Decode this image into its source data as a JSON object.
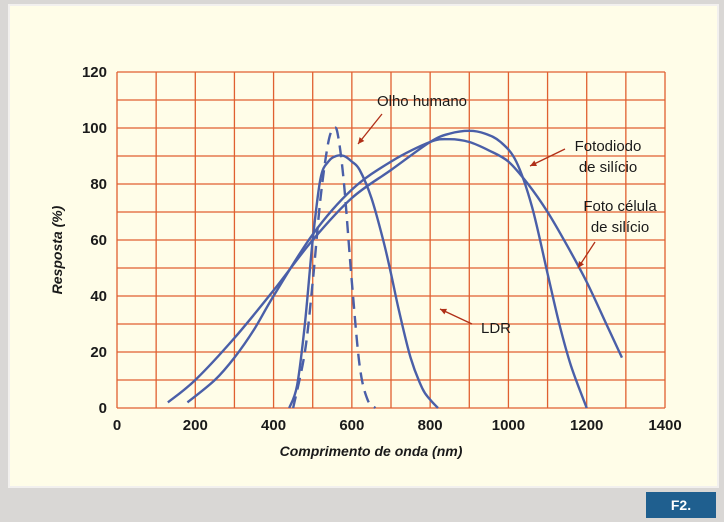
{
  "badge": "F2.",
  "chart_data": {
    "type": "line",
    "title": "",
    "xlabel": "Comprimento de onda (nm)",
    "ylabel": "Resposta (%)",
    "xlim": [
      0,
      1400
    ],
    "ylim": [
      0,
      120
    ],
    "xticks": [
      0,
      200,
      400,
      600,
      800,
      1000,
      1200,
      1400
    ],
    "yticks": [
      0,
      20,
      40,
      60,
      80,
      100,
      120
    ],
    "grid": true,
    "colors": {
      "grid": "#e06030",
      "series": "#4a5fa8",
      "panel": "#fffde8"
    },
    "series": [
      {
        "name": "Olho humano",
        "dash": true,
        "x": [
          450,
          480,
          500,
          520,
          540,
          555,
          565,
          580,
          600,
          620,
          640,
          660
        ],
        "y": [
          0,
          20,
          45,
          75,
          95,
          100,
          97,
          80,
          45,
          15,
          3,
          0
        ]
      },
      {
        "name": "LDR",
        "dash": false,
        "x": [
          440,
          460,
          480,
          500,
          520,
          540,
          560,
          580,
          600,
          620,
          650,
          680,
          700,
          720,
          750,
          780,
          800,
          820
        ],
        "y": [
          0,
          8,
          30,
          60,
          82,
          88,
          90,
          90,
          88,
          85,
          75,
          60,
          48,
          35,
          18,
          7,
          3,
          0
        ]
      },
      {
        "name": "Fotodiodo de silício",
        "dash": false,
        "x": [
          130,
          200,
          300,
          400,
          500,
          600,
          700,
          800,
          850,
          900,
          940,
          980,
          1020,
          1060,
          1100,
          1130,
          1160,
          1200
        ],
        "y": [
          2,
          10,
          25,
          42,
          60,
          75,
          85,
          95,
          98,
          99,
          98,
          95,
          88,
          72,
          48,
          30,
          15,
          0
        ]
      },
      {
        "name": "Foto célula de silício",
        "dash": false,
        "x": [
          180,
          250,
          300,
          350,
          400,
          500,
          600,
          700,
          800,
          850,
          900,
          950,
          1000,
          1050,
          1100,
          1150,
          1200,
          1250,
          1290
        ],
        "y": [
          2,
          10,
          18,
          28,
          40,
          62,
          78,
          88,
          95,
          96,
          95,
          92,
          88,
          80,
          70,
          58,
          45,
          30,
          18
        ]
      }
    ]
  }
}
